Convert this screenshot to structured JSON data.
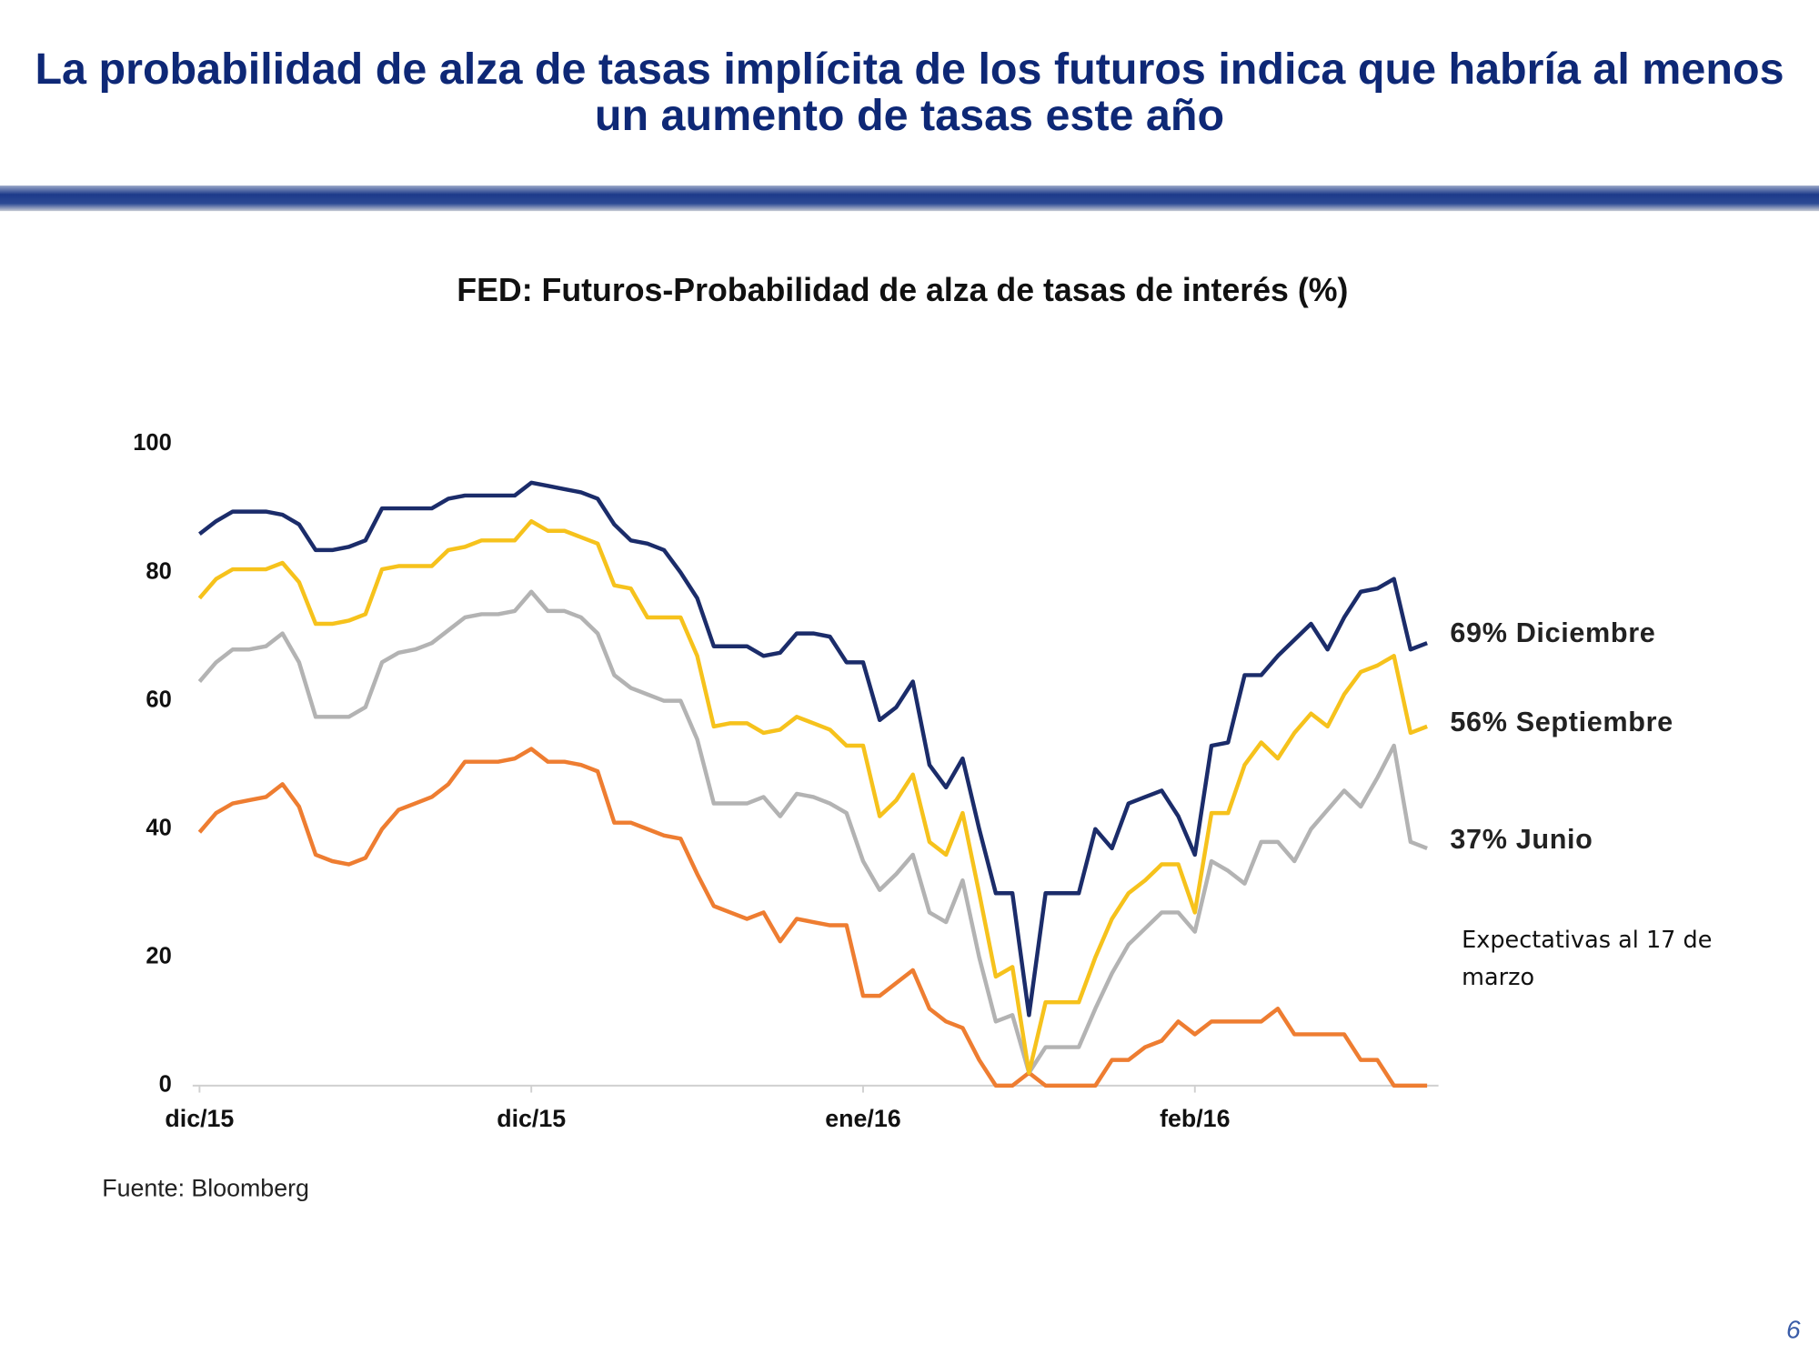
{
  "header": {
    "title": "La probabilidad de alza de tasas implícita de los futuros indica que habría al menos un aumento de tasas este año"
  },
  "chart_data": {
    "type": "line",
    "title": "FED: Futuros-Probabilidad de alza de tasas de interés (%)",
    "categories": [
      "dic/15",
      null,
      null,
      null,
      null,
      null,
      null,
      null,
      null,
      null,
      null,
      null,
      null,
      null,
      null,
      null,
      null,
      null,
      null,
      null,
      "dic/15",
      null,
      null,
      null,
      null,
      null,
      null,
      null,
      null,
      null,
      null,
      null,
      null,
      null,
      null,
      null,
      null,
      null,
      null,
      null,
      "ene/16",
      null,
      null,
      null,
      null,
      null,
      null,
      null,
      null,
      null,
      null,
      null,
      null,
      null,
      null,
      null,
      null,
      null,
      null,
      null,
      "feb/16",
      null,
      null,
      null,
      null,
      null,
      null,
      null,
      null,
      null,
      null,
      null,
      null,
      null,
      null
    ],
    "series": [
      {
        "name": "69% Diciembre",
        "color": "#1b2c6a",
        "values": [
          86,
          88,
          89.5,
          89.5,
          89.5,
          89,
          87.5,
          83.5,
          83.5,
          84,
          85,
          90,
          90,
          90,
          90,
          91.5,
          92,
          92,
          92,
          92,
          94,
          93.5,
          93,
          92.5,
          91.5,
          87.5,
          85,
          84.5,
          83.5,
          80,
          76,
          68.5,
          68.5,
          68.5,
          67,
          67.5,
          70.5,
          70.5,
          70,
          66,
          66,
          57,
          59,
          63,
          50,
          46.5,
          51,
          40,
          30,
          30,
          11,
          30,
          30,
          30,
          40,
          37,
          44,
          45,
          46,
          42,
          36,
          53,
          53.5,
          64,
          64,
          67,
          69.5,
          72,
          68,
          73,
          77,
          77.5,
          79,
          68,
          69
        ]
      },
      {
        "name": "56% Septiembre",
        "color": "#f6c21c",
        "values": [
          76,
          79,
          80.5,
          80.5,
          80.5,
          81.5,
          78.5,
          72,
          72,
          72.5,
          73.5,
          80.5,
          81,
          81,
          81,
          83.5,
          84,
          85,
          85,
          85,
          88,
          86.5,
          86.5,
          85.5,
          84.5,
          78,
          77.5,
          73,
          73,
          73,
          67,
          56,
          56.5,
          56.5,
          55,
          55.5,
          57.5,
          56.5,
          55.5,
          53,
          53,
          42,
          44.5,
          48.5,
          38,
          36,
          42.5,
          30,
          17,
          18.5,
          2,
          13,
          13,
          13,
          20,
          26,
          30,
          32,
          34.5,
          34.5,
          27,
          42.5,
          42.5,
          50,
          53.5,
          51,
          55,
          58,
          56,
          61,
          64.5,
          65.5,
          67,
          55,
          56
        ]
      },
      {
        "name": "37% Junio",
        "color": "#b3b3b3",
        "values": [
          63,
          66,
          68,
          68,
          68.5,
          70.5,
          66,
          57.5,
          57.5,
          57.5,
          59,
          66,
          67.5,
          68,
          69,
          71,
          73,
          73.5,
          73.5,
          74,
          77,
          74,
          74,
          73,
          70.5,
          64,
          62,
          61,
          60,
          60,
          54,
          44,
          44,
          44,
          45,
          42,
          45.5,
          45,
          44,
          42.5,
          35,
          30.5,
          33,
          36,
          27,
          25.5,
          32,
          20,
          10,
          11,
          2,
          6,
          6,
          6,
          12,
          17.5,
          22,
          24.5,
          27,
          27,
          24,
          35,
          33.5,
          31.5,
          38,
          38,
          35,
          40,
          43,
          46,
          43.5,
          48,
          53,
          38,
          37
        ]
      },
      {
        "color": "#ee7d31",
        "values": [
          39.5,
          42.5,
          44,
          44.5,
          45,
          47,
          43.5,
          36,
          35,
          34.5,
          35.5,
          40,
          43,
          44,
          45,
          47,
          50.5,
          50.5,
          50.5,
          51,
          52.5,
          50.5,
          50.5,
          50,
          49,
          41,
          41,
          40,
          39,
          38.5,
          33,
          28,
          27,
          26,
          27,
          22.5,
          26,
          25.5,
          25,
          25,
          14,
          14,
          16,
          18,
          12,
          10,
          9,
          4,
          0,
          0,
          2,
          0,
          0,
          0,
          0,
          4,
          4,
          6,
          7,
          10,
          8,
          10,
          10,
          10,
          10,
          12,
          8,
          8,
          8,
          8,
          4,
          4,
          0,
          0,
          0
        ]
      }
    ],
    "ylim": [
      0,
      100
    ],
    "yticks": [
      0,
      20,
      40,
      60,
      80,
      100
    ],
    "annotation": "Expectativas al 17 de marzo",
    "source": "Fuente: Bloomberg"
  },
  "footer": {
    "page": "6"
  }
}
